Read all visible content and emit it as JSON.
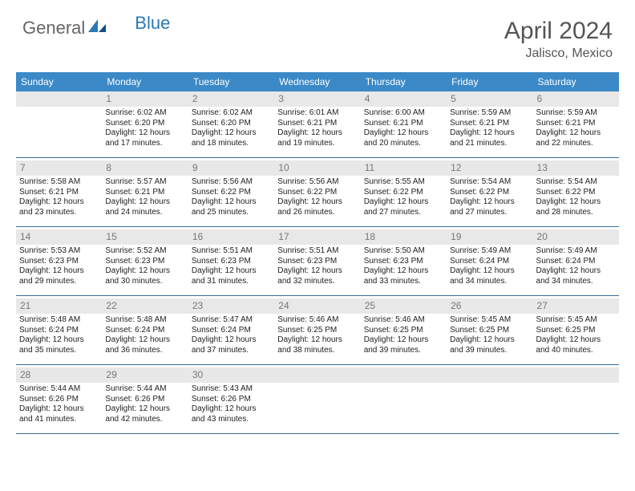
{
  "logo": {
    "text1": "General",
    "text2": "Blue"
  },
  "title": "April 2024",
  "location": "Jalisco, Mexico",
  "colors": {
    "header_bar": "#3b89c7",
    "header_text": "#ffffff",
    "daynum_bg": "#e8e8e8",
    "daynum_text": "#777777",
    "body_text": "#222222",
    "week_divider": "#3b6f9c",
    "logo_accent": "#2a78b8",
    "title_text": "#555555"
  },
  "fonts": {
    "title_size_pt": 22,
    "location_size_pt": 12,
    "weekday_size_pt": 9,
    "daynum_size_pt": 9,
    "body_size_pt": 7.5
  },
  "weekdays": [
    "Sunday",
    "Monday",
    "Tuesday",
    "Wednesday",
    "Thursday",
    "Friday",
    "Saturday"
  ],
  "weeks": [
    [
      {
        "empty": true
      },
      {
        "num": "1",
        "sunrise": "6:02 AM",
        "sunset": "6:20 PM",
        "dl1": "Daylight: 12 hours",
        "dl2": "and 17 minutes."
      },
      {
        "num": "2",
        "sunrise": "6:02 AM",
        "sunset": "6:20 PM",
        "dl1": "Daylight: 12 hours",
        "dl2": "and 18 minutes."
      },
      {
        "num": "3",
        "sunrise": "6:01 AM",
        "sunset": "6:21 PM",
        "dl1": "Daylight: 12 hours",
        "dl2": "and 19 minutes."
      },
      {
        "num": "4",
        "sunrise": "6:00 AM",
        "sunset": "6:21 PM",
        "dl1": "Daylight: 12 hours",
        "dl2": "and 20 minutes."
      },
      {
        "num": "5",
        "sunrise": "5:59 AM",
        "sunset": "6:21 PM",
        "dl1": "Daylight: 12 hours",
        "dl2": "and 21 minutes."
      },
      {
        "num": "6",
        "sunrise": "5:59 AM",
        "sunset": "6:21 PM",
        "dl1": "Daylight: 12 hours",
        "dl2": "and 22 minutes."
      }
    ],
    [
      {
        "num": "7",
        "sunrise": "5:58 AM",
        "sunset": "6:21 PM",
        "dl1": "Daylight: 12 hours",
        "dl2": "and 23 minutes."
      },
      {
        "num": "8",
        "sunrise": "5:57 AM",
        "sunset": "6:21 PM",
        "dl1": "Daylight: 12 hours",
        "dl2": "and 24 minutes."
      },
      {
        "num": "9",
        "sunrise": "5:56 AM",
        "sunset": "6:22 PM",
        "dl1": "Daylight: 12 hours",
        "dl2": "and 25 minutes."
      },
      {
        "num": "10",
        "sunrise": "5:56 AM",
        "sunset": "6:22 PM",
        "dl1": "Daylight: 12 hours",
        "dl2": "and 26 minutes."
      },
      {
        "num": "11",
        "sunrise": "5:55 AM",
        "sunset": "6:22 PM",
        "dl1": "Daylight: 12 hours",
        "dl2": "and 27 minutes."
      },
      {
        "num": "12",
        "sunrise": "5:54 AM",
        "sunset": "6:22 PM",
        "dl1": "Daylight: 12 hours",
        "dl2": "and 27 minutes."
      },
      {
        "num": "13",
        "sunrise": "5:54 AM",
        "sunset": "6:22 PM",
        "dl1": "Daylight: 12 hours",
        "dl2": "and 28 minutes."
      }
    ],
    [
      {
        "num": "14",
        "sunrise": "5:53 AM",
        "sunset": "6:23 PM",
        "dl1": "Daylight: 12 hours",
        "dl2": "and 29 minutes."
      },
      {
        "num": "15",
        "sunrise": "5:52 AM",
        "sunset": "6:23 PM",
        "dl1": "Daylight: 12 hours",
        "dl2": "and 30 minutes."
      },
      {
        "num": "16",
        "sunrise": "5:51 AM",
        "sunset": "6:23 PM",
        "dl1": "Daylight: 12 hours",
        "dl2": "and 31 minutes."
      },
      {
        "num": "17",
        "sunrise": "5:51 AM",
        "sunset": "6:23 PM",
        "dl1": "Daylight: 12 hours",
        "dl2": "and 32 minutes."
      },
      {
        "num": "18",
        "sunrise": "5:50 AM",
        "sunset": "6:23 PM",
        "dl1": "Daylight: 12 hours",
        "dl2": "and 33 minutes."
      },
      {
        "num": "19",
        "sunrise": "5:49 AM",
        "sunset": "6:24 PM",
        "dl1": "Daylight: 12 hours",
        "dl2": "and 34 minutes."
      },
      {
        "num": "20",
        "sunrise": "5:49 AM",
        "sunset": "6:24 PM",
        "dl1": "Daylight: 12 hours",
        "dl2": "and 34 minutes."
      }
    ],
    [
      {
        "num": "21",
        "sunrise": "5:48 AM",
        "sunset": "6:24 PM",
        "dl1": "Daylight: 12 hours",
        "dl2": "and 35 minutes."
      },
      {
        "num": "22",
        "sunrise": "5:48 AM",
        "sunset": "6:24 PM",
        "dl1": "Daylight: 12 hours",
        "dl2": "and 36 minutes."
      },
      {
        "num": "23",
        "sunrise": "5:47 AM",
        "sunset": "6:24 PM",
        "dl1": "Daylight: 12 hours",
        "dl2": "and 37 minutes."
      },
      {
        "num": "24",
        "sunrise": "5:46 AM",
        "sunset": "6:25 PM",
        "dl1": "Daylight: 12 hours",
        "dl2": "and 38 minutes."
      },
      {
        "num": "25",
        "sunrise": "5:46 AM",
        "sunset": "6:25 PM",
        "dl1": "Daylight: 12 hours",
        "dl2": "and 39 minutes."
      },
      {
        "num": "26",
        "sunrise": "5:45 AM",
        "sunset": "6:25 PM",
        "dl1": "Daylight: 12 hours",
        "dl2": "and 39 minutes."
      },
      {
        "num": "27",
        "sunrise": "5:45 AM",
        "sunset": "6:25 PM",
        "dl1": "Daylight: 12 hours",
        "dl2": "and 40 minutes."
      }
    ],
    [
      {
        "num": "28",
        "sunrise": "5:44 AM",
        "sunset": "6:26 PM",
        "dl1": "Daylight: 12 hours",
        "dl2": "and 41 minutes."
      },
      {
        "num": "29",
        "sunrise": "5:44 AM",
        "sunset": "6:26 PM",
        "dl1": "Daylight: 12 hours",
        "dl2": "and 42 minutes."
      },
      {
        "num": "30",
        "sunrise": "5:43 AM",
        "sunset": "6:26 PM",
        "dl1": "Daylight: 12 hours",
        "dl2": "and 43 minutes."
      },
      {
        "empty": true
      },
      {
        "empty": true
      },
      {
        "empty": true
      },
      {
        "empty": true
      }
    ]
  ],
  "labels": {
    "sunrise_prefix": "Sunrise: ",
    "sunset_prefix": "Sunset: "
  }
}
